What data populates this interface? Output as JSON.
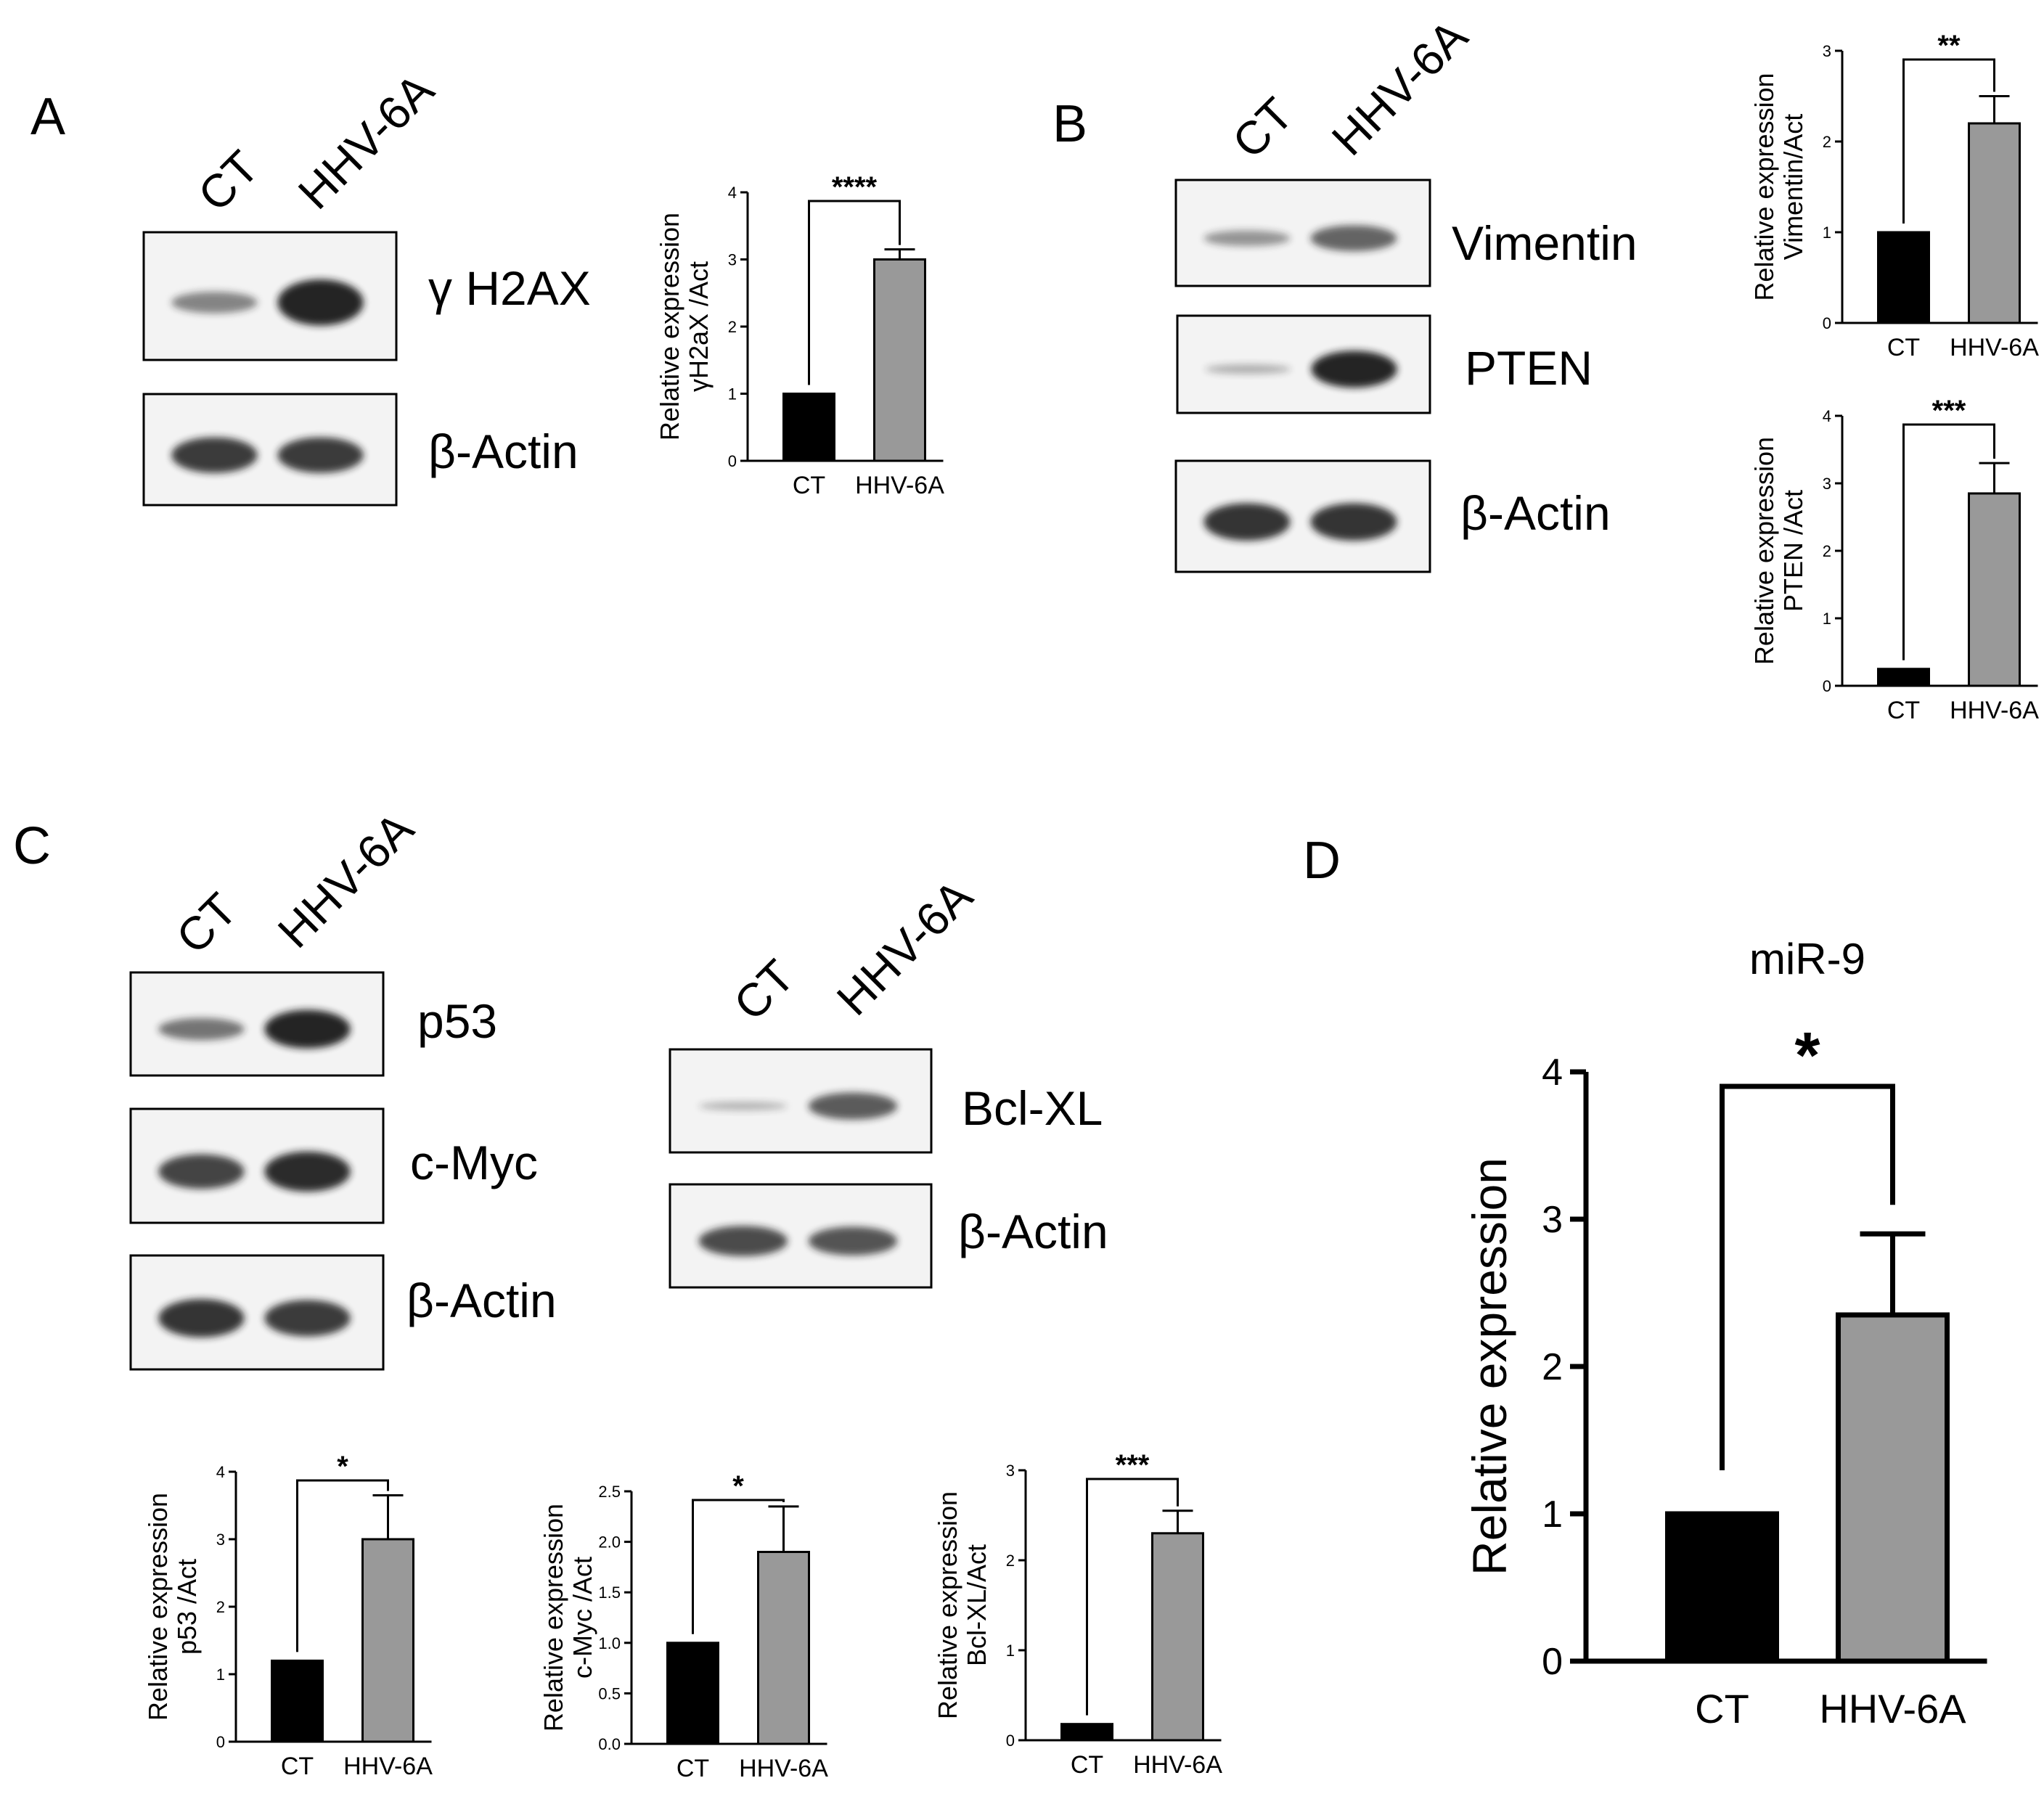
{
  "colors": {
    "ct_bar": "#000000",
    "hhv_bar": "#999999",
    "blot_bg": "#f3f3f3",
    "band": "#1a1a1a"
  },
  "panels": {
    "A": {
      "letter": "A",
      "lanes": [
        "CT",
        "HHV-6A"
      ],
      "blots": [
        {
          "label": "γ H2AX",
          "ct_intensity": 0.35,
          "hhv_intensity": 0.95
        },
        {
          "label": "β-Actin",
          "ct_intensity": 0.8,
          "hhv_intensity": 0.8
        }
      ]
    },
    "B": {
      "letter": "B",
      "lanes": [
        "CT",
        "HHV-6A"
      ],
      "blots": [
        {
          "label": "Vimentin",
          "ct_intensity": 0.25,
          "hhv_intensity": 0.55
        },
        {
          "label": "PTEN",
          "ct_intensity": 0.08,
          "hhv_intensity": 0.95
        },
        {
          "label": "β-Actin",
          "ct_intensity": 0.85,
          "hhv_intensity": 0.85
        }
      ]
    },
    "C": {
      "letter": "C",
      "lanes": [
        "CT",
        "HHV-6A"
      ],
      "blots_left": [
        {
          "label": "p53",
          "ct_intensity": 0.45,
          "hhv_intensity": 0.95
        },
        {
          "label": "c-Myc",
          "ct_intensity": 0.75,
          "hhv_intensity": 0.9
        },
        {
          "label": "β-Actin",
          "ct_intensity": 0.85,
          "hhv_intensity": 0.8
        }
      ],
      "blots_right": [
        {
          "label": "Bcl-XL",
          "ct_intensity": 0.05,
          "hhv_intensity": 0.6
        },
        {
          "label": "β-Actin",
          "ct_intensity": 0.7,
          "hhv_intensity": 0.65
        }
      ]
    },
    "D": {
      "letter": "D"
    }
  },
  "chart_data": [
    {
      "id": "A-gH2AX",
      "type": "bar",
      "categories": [
        "CT",
        "HHV-6A"
      ],
      "series": [
        {
          "values": [
            1.0,
            3.0
          ],
          "errors": [
            0,
            0.15
          ]
        }
      ],
      "ylabel": [
        "Relative expression",
        "γH2aX /Act"
      ],
      "ylim": [
        0,
        4
      ],
      "yticks": [
        "0",
        "1",
        "2",
        "3",
        "4"
      ],
      "significance": "****",
      "grid": false
    },
    {
      "id": "B-Vimentin",
      "type": "bar",
      "categories": [
        "CT",
        "HHV-6A"
      ],
      "series": [
        {
          "values": [
            1.0,
            2.2
          ],
          "errors": [
            0,
            0.3
          ]
        }
      ],
      "ylabel": [
        "Relative expression",
        "Vimentin/Act"
      ],
      "ylim": [
        0,
        3
      ],
      "yticks": [
        "0",
        "1",
        "2",
        "3"
      ],
      "significance": "**",
      "grid": false
    },
    {
      "id": "B-PTEN",
      "type": "bar",
      "categories": [
        "CT",
        "HHV-6A"
      ],
      "series": [
        {
          "values": [
            0.25,
            2.85
          ],
          "errors": [
            0,
            0.45
          ]
        }
      ],
      "ylabel": [
        "Relative expression",
        "PTEN /Act"
      ],
      "ylim": [
        0,
        4
      ],
      "yticks": [
        "0",
        "1",
        "2",
        "3",
        "4"
      ],
      "significance": "***",
      "grid": false
    },
    {
      "id": "C-p53",
      "type": "bar",
      "categories": [
        "CT",
        "HHV-6A"
      ],
      "series": [
        {
          "values": [
            1.2,
            3.0
          ],
          "errors": [
            0,
            0.65
          ]
        }
      ],
      "ylabel": [
        "Relative expression",
        "p53 /Act"
      ],
      "ylim": [
        0,
        4
      ],
      "yticks": [
        "0",
        "1",
        "2",
        "3",
        "4"
      ],
      "significance": "*",
      "grid": false
    },
    {
      "id": "C-cMyc",
      "type": "bar",
      "categories": [
        "CT",
        "HHV-6A"
      ],
      "series": [
        {
          "values": [
            1.0,
            1.9
          ],
          "errors": [
            0,
            0.45
          ]
        }
      ],
      "ylabel": [
        "Relative expression",
        "c-Myc /Act"
      ],
      "ylim": [
        0,
        2.5
      ],
      "yticks": [
        "0.0",
        "0.5",
        "1.0",
        "1.5",
        "2.0",
        "2.5"
      ],
      "significance": "*",
      "grid": false
    },
    {
      "id": "C-BclXL",
      "type": "bar",
      "categories": [
        "CT",
        "HHV-6A"
      ],
      "series": [
        {
          "values": [
            0.18,
            2.3
          ],
          "errors": [
            0,
            0.25
          ]
        }
      ],
      "ylabel": [
        "Relative expression",
        "Bcl-XL/Act"
      ],
      "ylim": [
        0,
        3
      ],
      "yticks": [
        "0",
        "1",
        "2",
        "3"
      ],
      "significance": "***",
      "grid": false
    },
    {
      "id": "D-miR9",
      "type": "bar",
      "categories": [
        "CT",
        "HHV-6A"
      ],
      "series": [
        {
          "values": [
            1.0,
            2.35
          ],
          "errors": [
            0,
            0.55
          ]
        }
      ],
      "title": "miR-9",
      "ylabel": [
        "Relative expression"
      ],
      "ylim": [
        0,
        4
      ],
      "yticks": [
        "0",
        "1",
        "2",
        "3",
        "4"
      ],
      "significance": "*",
      "grid": false
    }
  ]
}
